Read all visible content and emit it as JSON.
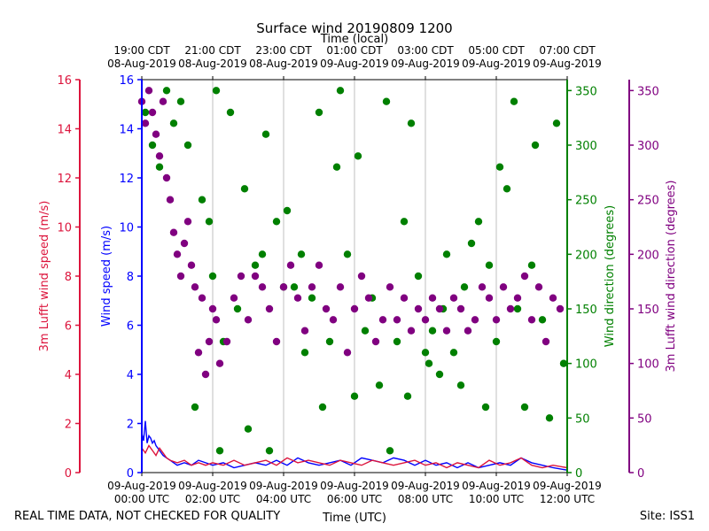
{
  "chart_data": {
    "type": "scatter",
    "title": "Surface wind 20190809 1200",
    "top_axis_label": "Time (local)",
    "bottom_axis_label": "Time (UTC)",
    "footer_left": "REAL TIME DATA, NOT CHECKED FOR QUALITY",
    "footer_right": "Site: ISS1",
    "x_range_hours": [
      0,
      12
    ],
    "bottom_ticks": [
      {
        "h": 0,
        "l1": "09-Aug-2019",
        "l2": "00:00 UTC"
      },
      {
        "h": 2,
        "l1": "09-Aug-2019",
        "l2": "02:00 UTC"
      },
      {
        "h": 4,
        "l1": "09-Aug-2019",
        "l2": "04:00 UTC"
      },
      {
        "h": 6,
        "l1": "09-Aug-2019",
        "l2": "06:00 UTC"
      },
      {
        "h": 8,
        "l1": "09-Aug-2019",
        "l2": "08:00 UTC"
      },
      {
        "h": 10,
        "l1": "09-Aug-2019",
        "l2": "10:00 UTC"
      },
      {
        "h": 12,
        "l1": "09-Aug-2019",
        "l2": "12:00 UTC"
      }
    ],
    "top_ticks": [
      {
        "h": 0,
        "l1": "19:00 CDT",
        "l2": "08-Aug-2019"
      },
      {
        "h": 2,
        "l1": "21:00 CDT",
        "l2": "08-Aug-2019"
      },
      {
        "h": 4,
        "l1": "23:00 CDT",
        "l2": "08-Aug-2019"
      },
      {
        "h": 6,
        "l1": "01:00 CDT",
        "l2": "09-Aug-2019"
      },
      {
        "h": 8,
        "l1": "03:00 CDT",
        "l2": "09-Aug-2019"
      },
      {
        "h": 10,
        "l1": "05:00 CDT",
        "l2": "09-Aug-2019"
      },
      {
        "h": 12,
        "l1": "07:00 CDT",
        "l2": "09-Aug-2019"
      }
    ],
    "axes": {
      "lufft_speed": {
        "label": "3m Lufft wind speed (m/s)",
        "range": [
          0,
          16
        ],
        "ticks": [
          "0",
          "2",
          "4",
          "6",
          "8",
          "10",
          "12",
          "14",
          "16"
        ],
        "color": "#dc143c"
      },
      "wind_speed": {
        "label": "Wind speed (m/s)",
        "range": [
          0,
          16
        ],
        "ticks": [
          "0",
          "2",
          "4",
          "6",
          "8",
          "10",
          "12",
          "14",
          "16"
        ],
        "color": "#0000ff"
      },
      "wind_dir": {
        "label": "Wind direction (degrees)",
        "range": [
          0,
          360
        ],
        "ticks": [
          "0",
          "50",
          "100",
          "150",
          "200",
          "250",
          "300",
          "350"
        ],
        "color": "#008000"
      },
      "lufft_dir": {
        "label": "3m Lufft wind direction (degrees)",
        "range": [
          0,
          360
        ],
        "ticks": [
          "0",
          "50",
          "100",
          "150",
          "200",
          "250",
          "300",
          "350"
        ],
        "color": "#800080"
      }
    },
    "series": [
      {
        "name": "Wind speed",
        "type": "line",
        "axis": "wind_speed",
        "color": "#0000ff",
        "hours": [
          0.0,
          0.05,
          0.1,
          0.15,
          0.2,
          0.25,
          0.3,
          0.35,
          0.4,
          0.5,
          0.6,
          0.7,
          0.8,
          0.9,
          1.0,
          1.2,
          1.4,
          1.6,
          1.8,
          2.0,
          2.3,
          2.6,
          2.9,
          3.2,
          3.5,
          3.8,
          4.1,
          4.4,
          4.7,
          5.0,
          5.3,
          5.6,
          5.9,
          6.2,
          6.5,
          6.8,
          7.1,
          7.4,
          7.7,
          8.0,
          8.3,
          8.6,
          8.9,
          9.2,
          9.5,
          9.8,
          10.1,
          10.4,
          10.7,
          11.0,
          11.3,
          11.6,
          12.0
        ],
        "values": [
          1.6,
          1.3,
          2.1,
          1.2,
          1.5,
          1.4,
          1.2,
          1.3,
          1.1,
          0.9,
          0.7,
          0.6,
          0.5,
          0.4,
          0.3,
          0.4,
          0.3,
          0.5,
          0.4,
          0.3,
          0.4,
          0.2,
          0.3,
          0.4,
          0.3,
          0.5,
          0.3,
          0.6,
          0.4,
          0.3,
          0.4,
          0.5,
          0.3,
          0.6,
          0.5,
          0.4,
          0.6,
          0.5,
          0.3,
          0.5,
          0.3,
          0.4,
          0.2,
          0.4,
          0.2,
          0.3,
          0.4,
          0.3,
          0.6,
          0.4,
          0.3,
          0.2,
          0.1
        ]
      },
      {
        "name": "3m Lufft wind speed",
        "type": "line",
        "axis": "lufft_speed",
        "color": "#dc143c",
        "hours": [
          0.0,
          0.1,
          0.2,
          0.3,
          0.4,
          0.5,
          0.6,
          0.7,
          0.8,
          1.0,
          1.2,
          1.4,
          1.6,
          1.8,
          2.0,
          2.3,
          2.6,
          2.9,
          3.2,
          3.5,
          3.8,
          4.1,
          4.4,
          4.7,
          5.0,
          5.3,
          5.6,
          5.9,
          6.2,
          6.5,
          6.8,
          7.1,
          7.4,
          7.7,
          8.0,
          8.3,
          8.6,
          8.9,
          9.2,
          9.5,
          9.8,
          10.1,
          10.4,
          10.7,
          11.0,
          11.3,
          11.6,
          12.0
        ],
        "values": [
          1.0,
          0.8,
          1.1,
          0.9,
          0.7,
          1.0,
          0.8,
          0.6,
          0.5,
          0.4,
          0.5,
          0.3,
          0.4,
          0.3,
          0.4,
          0.3,
          0.5,
          0.3,
          0.4,
          0.5,
          0.3,
          0.6,
          0.4,
          0.5,
          0.4,
          0.3,
          0.5,
          0.4,
          0.3,
          0.5,
          0.4,
          0.3,
          0.4,
          0.5,
          0.3,
          0.4,
          0.2,
          0.4,
          0.3,
          0.2,
          0.5,
          0.3,
          0.4,
          0.6,
          0.3,
          0.2,
          0.3,
          0.2
        ]
      },
      {
        "name": "Wind direction",
        "type": "scatter",
        "axis": "wind_dir",
        "color": "#008000",
        "hours": [
          0.1,
          0.3,
          0.5,
          0.7,
          0.9,
          1.1,
          1.3,
          1.5,
          1.7,
          1.9,
          2.0,
          2.1,
          2.2,
          2.3,
          2.5,
          2.7,
          2.9,
          3.0,
          3.2,
          3.4,
          3.5,
          3.6,
          3.8,
          4.0,
          4.1,
          4.3,
          4.5,
          4.6,
          4.8,
          5.0,
          5.1,
          5.3,
          5.5,
          5.6,
          5.8,
          6.0,
          6.1,
          6.3,
          6.5,
          6.7,
          6.9,
          7.0,
          7.2,
          7.4,
          7.5,
          7.6,
          7.8,
          8.0,
          8.1,
          8.2,
          8.4,
          8.5,
          8.6,
          8.8,
          9.0,
          9.1,
          9.3,
          9.5,
          9.7,
          9.8,
          10.0,
          10.1,
          10.3,
          10.5,
          10.6,
          10.8,
          11.0,
          11.1,
          11.3,
          11.5,
          11.7,
          11.9
        ],
        "values": [
          330,
          300,
          280,
          350,
          320,
          340,
          300,
          60,
          250,
          230,
          180,
          350,
          20,
          120,
          330,
          150,
          260,
          40,
          190,
          200,
          310,
          20,
          230,
          170,
          240,
          170,
          200,
          110,
          160,
          330,
          60,
          120,
          280,
          350,
          200,
          70,
          290,
          130,
          160,
          80,
          340,
          20,
          120,
          230,
          70,
          320,
          180,
          110,
          100,
          130,
          90,
          150,
          200,
          110,
          80,
          170,
          210,
          230,
          60,
          190,
          120,
          280,
          260,
          340,
          150,
          60,
          190,
          300,
          140,
          50,
          320,
          100
        ]
      },
      {
        "name": "3m Lufft wind direction",
        "type": "scatter",
        "axis": "lufft_dir",
        "color": "#800080",
        "hours": [
          0.0,
          0.1,
          0.2,
          0.3,
          0.4,
          0.5,
          0.6,
          0.7,
          0.8,
          0.9,
          1.0,
          1.1,
          1.2,
          1.3,
          1.4,
          1.5,
          1.6,
          1.7,
          1.8,
          1.9,
          2.0,
          2.1,
          2.2,
          2.4,
          2.6,
          2.8,
          3.0,
          3.2,
          3.4,
          3.6,
          3.8,
          4.0,
          4.2,
          4.4,
          4.6,
          4.8,
          5.0,
          5.2,
          5.4,
          5.6,
          5.8,
          6.0,
          6.2,
          6.4,
          6.6,
          6.8,
          7.0,
          7.2,
          7.4,
          7.6,
          7.8,
          8.0,
          8.2,
          8.4,
          8.6,
          8.8,
          9.0,
          9.2,
          9.4,
          9.6,
          9.8,
          10.0,
          10.2,
          10.4,
          10.6,
          10.8,
          11.0,
          11.2,
          11.4,
          11.6,
          11.8
        ],
        "values": [
          340,
          320,
          350,
          330,
          310,
          290,
          340,
          270,
          250,
          220,
          200,
          180,
          210,
          230,
          190,
          170,
          110,
          160,
          90,
          120,
          150,
          140,
          100,
          120,
          160,
          180,
          140,
          180,
          170,
          150,
          120,
          170,
          190,
          160,
          130,
          170,
          190,
          150,
          140,
          170,
          110,
          150,
          180,
          160,
          120,
          140,
          170,
          140,
          160,
          130,
          150,
          140,
          160,
          150,
          130,
          160,
          150,
          130,
          140,
          170,
          160,
          140,
          170,
          150,
          160,
          180,
          140,
          170,
          120,
          160,
          150
        ]
      }
    ]
  }
}
